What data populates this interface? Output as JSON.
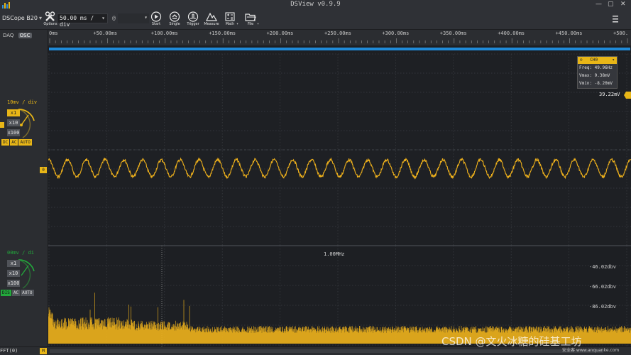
{
  "window": {
    "title": "DSView v0.9.9"
  },
  "toolbar": {
    "device": "DSCope B20",
    "options_label": "Options",
    "timebase": "50.00 ms / div",
    "at_symbol": "@",
    "start_label": "Start",
    "single_label": "Single",
    "trigger_label": "Trigger",
    "measure_label": "Measure",
    "math_label": "Math",
    "file_label": "File"
  },
  "left_panel": {
    "tab_daq": "DAQ",
    "tab_osc": "OSC",
    "ch0": {
      "vdiv": "10mv / div",
      "probe_options": [
        "x1",
        "x10",
        "x100"
      ],
      "selected_probe": "x1",
      "coupling": [
        "DC",
        "AC",
        "AUTO"
      ],
      "marker": "0"
    },
    "ch1": {
      "vdiv": "00mv / di",
      "probe_options": [
        "x1",
        "x10",
        "x100"
      ],
      "selected_probe": "x1",
      "coupling": [
        "DIS",
        "AC",
        "AUTO"
      ]
    }
  },
  "time_ruler": {
    "labels": [
      "0ms",
      "+50.00ms",
      "+100.00ms",
      "+150.00ms",
      "+200.00ms",
      "+250.00ms",
      "+300.00ms",
      "+350.00ms",
      "+400.00ms",
      "+450.00ms",
      "+500."
    ]
  },
  "measurement": {
    "channel": "CH0",
    "freq": "Freq: 49.96Hz",
    "vmax": "Vmax: 9.38mV",
    "vmin": "Vmin: -8.20mV"
  },
  "trigger_level": "39.22mV",
  "fft": {
    "center_label": "1.00MHz",
    "db_labels": [
      "-46.02dbv",
      "-66.02dbv",
      "-86.02dbv"
    ],
    "tag": "FFT(0)",
    "marker": "M"
  },
  "colors": {
    "accent": "#e8b617",
    "trace": "#f0b21c",
    "plot_bg": "#1d1f23",
    "grid": "#3a3d43",
    "progress": "#1f8ad8",
    "coupling_green": "#23a83c"
  },
  "watermark": {
    "main": "CSDN @文火冰糖的硅基工坊",
    "sub": "安全客 www.anquanke.com"
  }
}
